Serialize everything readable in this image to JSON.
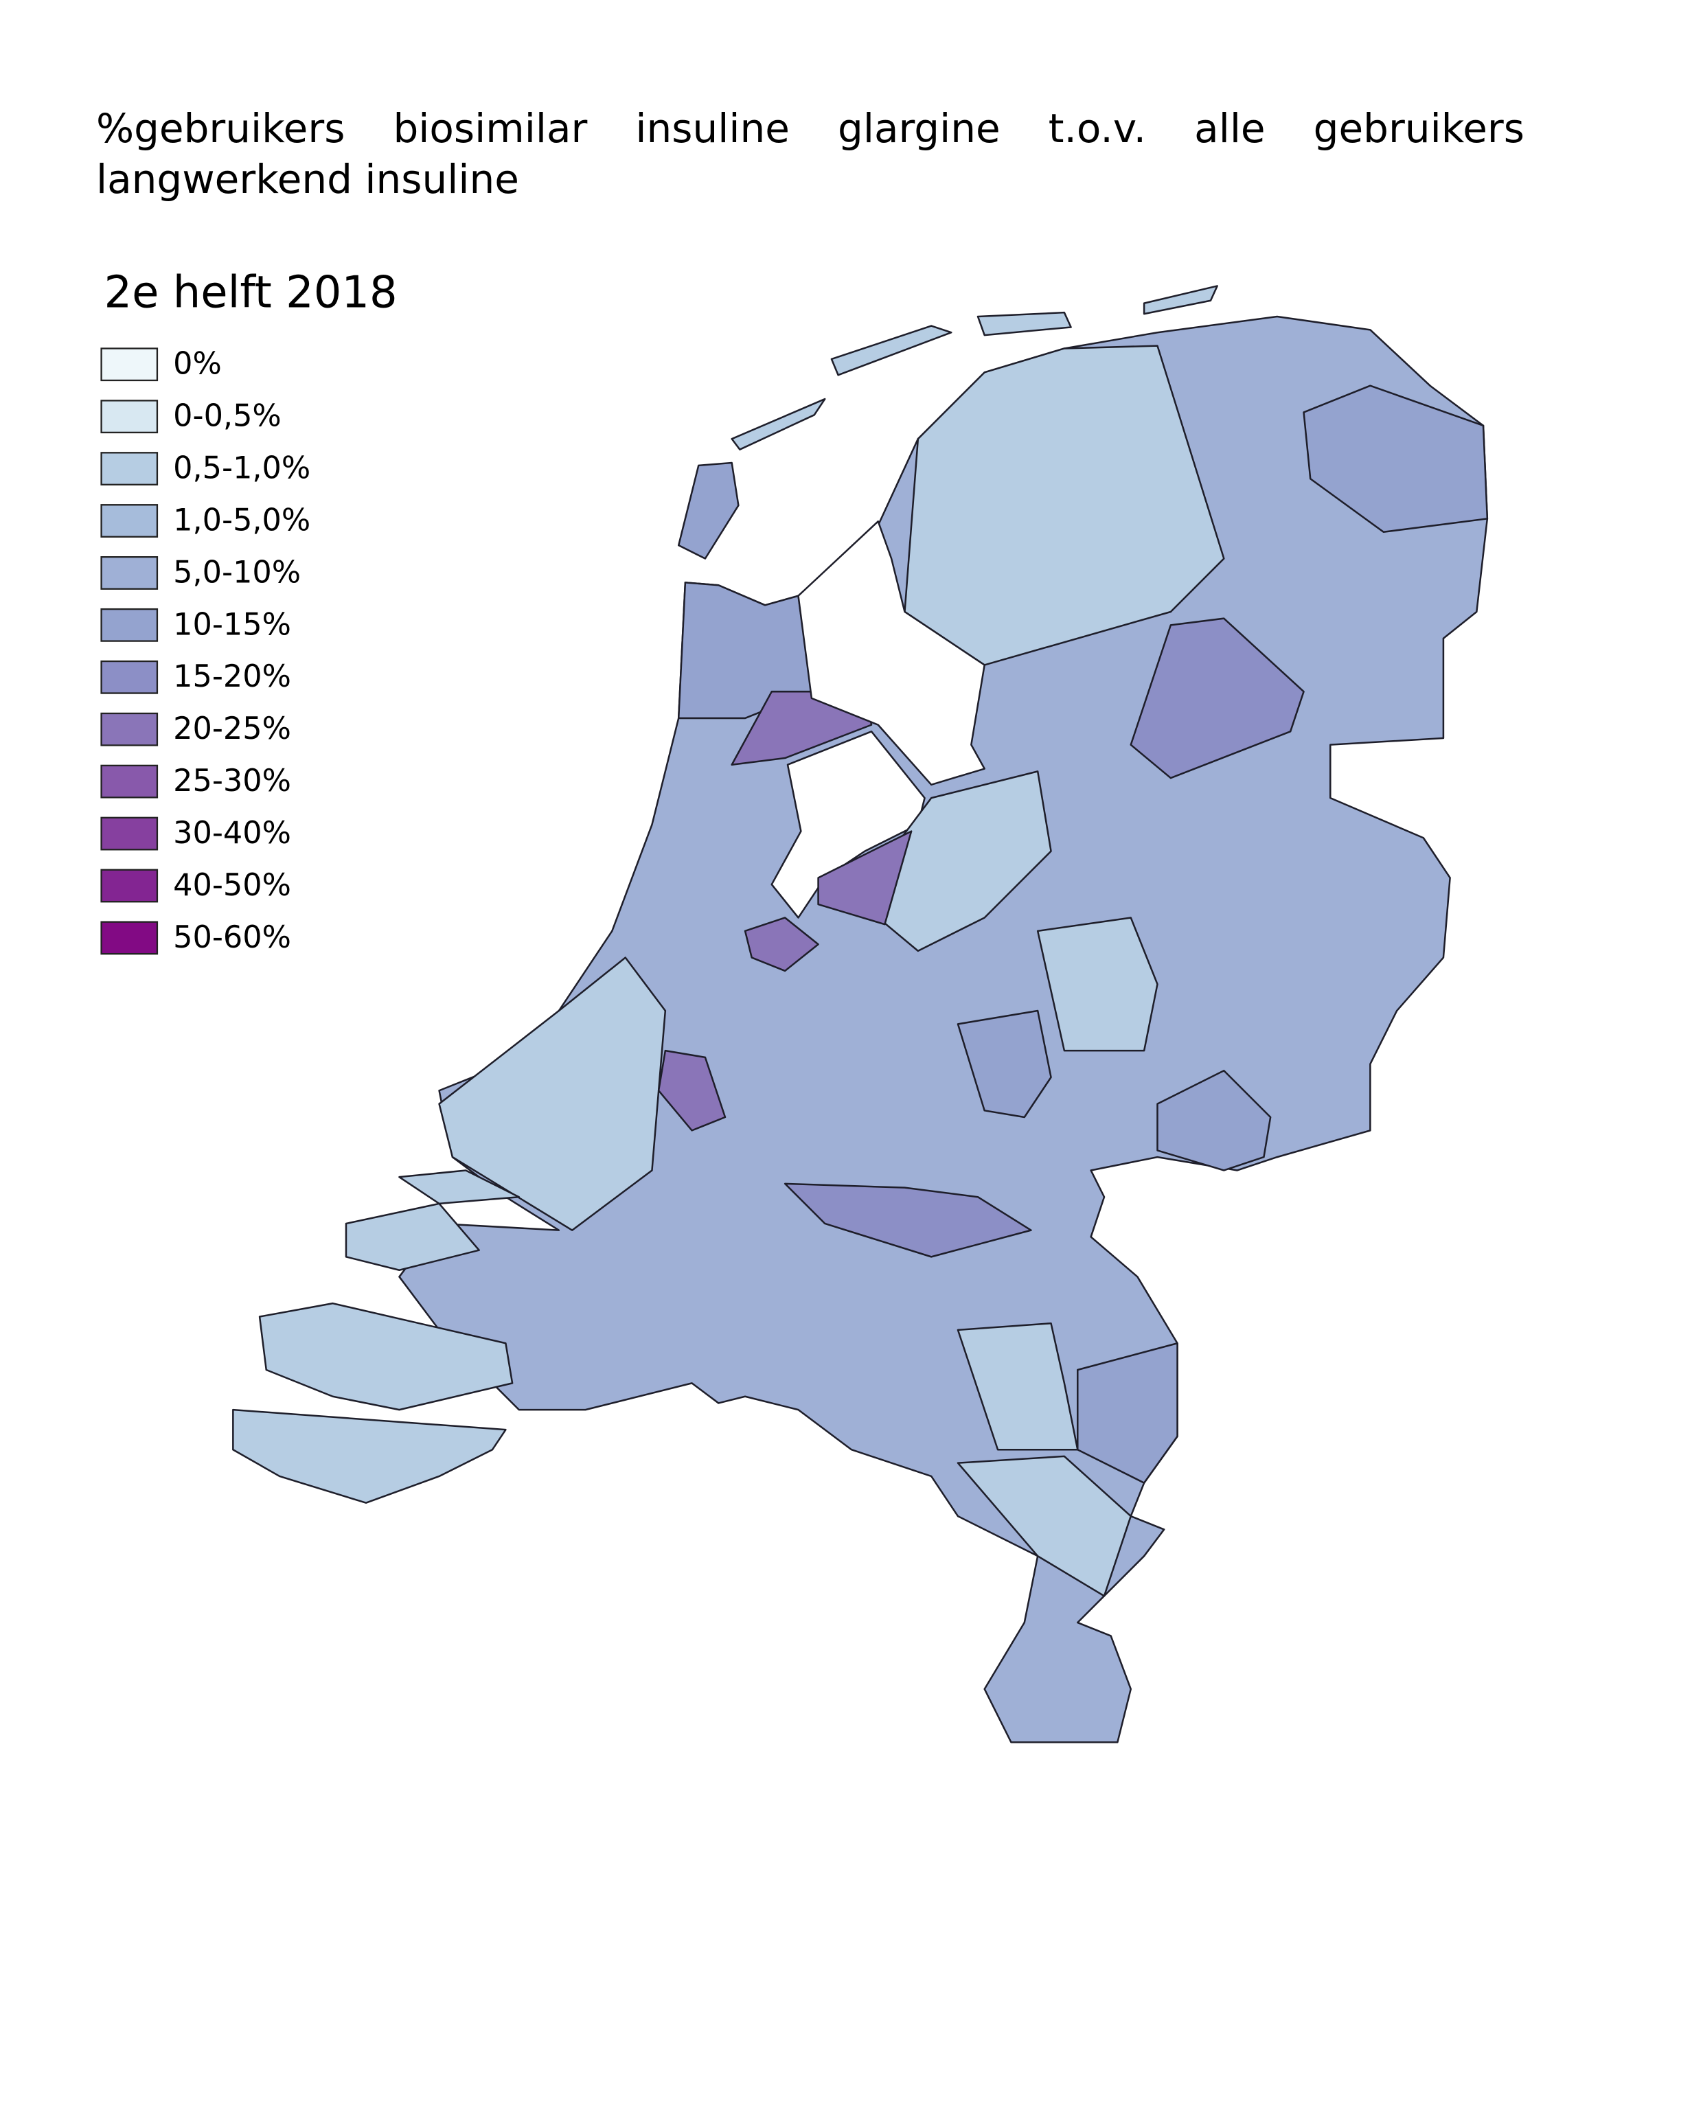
{
  "title": "%gebruikers biosimilar insuline glargine t.o.v. alle gebruikers langwerkend insuline",
  "map": {
    "subtitle": "2e helft 2018",
    "legend": [
      {
        "label": "0%",
        "color": "#eef7fa"
      },
      {
        "label": "0-0,5%",
        "color": "#d8e8f2"
      },
      {
        "label": "0,5-1,0%",
        "color": "#b6cde3"
      },
      {
        "label": "1,0-5,0%",
        "color": "#a6bcdb"
      },
      {
        "label": "5,0-10%",
        "color": "#9fb0d6"
      },
      {
        "label": "10-15%",
        "color": "#94a3cf"
      },
      {
        "label": "15-20%",
        "color": "#8c8fc6"
      },
      {
        "label": "20-25%",
        "color": "#8a75b8"
      },
      {
        "label": "25-30%",
        "color": "#8859ab"
      },
      {
        "label": "30-40%",
        "color": "#86409f"
      },
      {
        "label": "40-50%",
        "color": "#832592"
      },
      {
        "label": "50-60%",
        "color": "#820a84"
      }
    ]
  }
}
